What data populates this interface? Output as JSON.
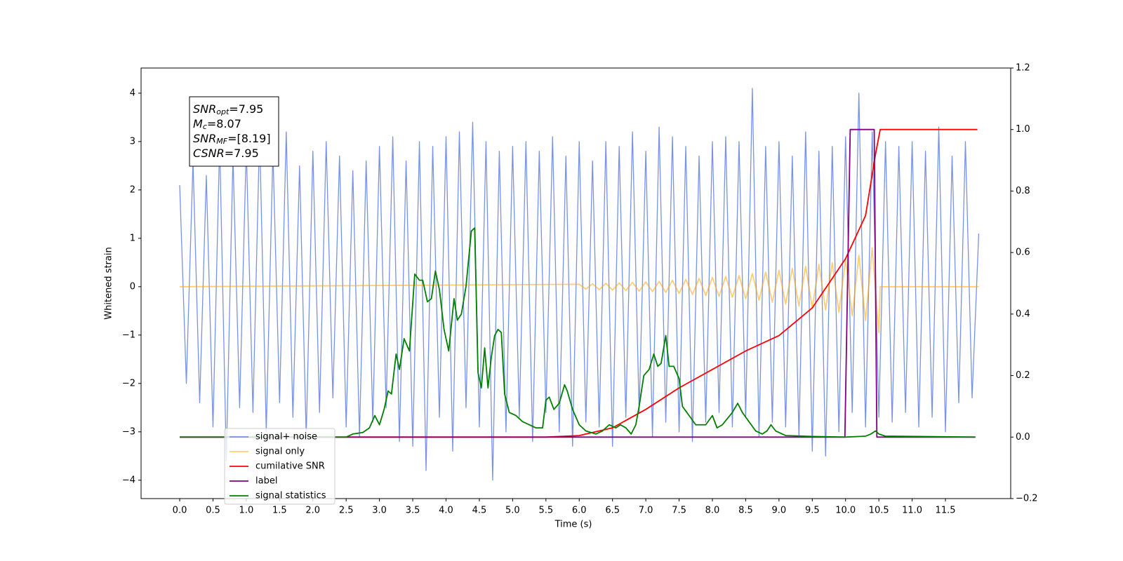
{
  "chart_data": {
    "type": "line",
    "xlabel": "Time (s)",
    "ylabel": "Whitened strain",
    "xlim": [
      -0.58,
      12.48
    ],
    "ylim": [
      -4.38,
      4.52
    ],
    "y2lim": [
      -0.2,
      1.2
    ],
    "xticks": [
      {
        "value": 0,
        "label": "0.0"
      },
      {
        "value": 0.5,
        "label": "0.5"
      },
      {
        "value": 1,
        "label": "1.0"
      },
      {
        "value": 1.5,
        "label": "1.5"
      },
      {
        "value": 2,
        "label": "2.0"
      },
      {
        "value": 2.5,
        "label": "2.5"
      },
      {
        "value": 3,
        "label": "3.0"
      },
      {
        "value": 3.5,
        "label": "3.5"
      },
      {
        "value": 4,
        "label": "4.0"
      },
      {
        "value": 4.5,
        "label": "4.5"
      },
      {
        "value": 5,
        "label": "5.0"
      },
      {
        "value": 5.5,
        "label": "5.5"
      },
      {
        "value": 6,
        "label": "6.0"
      },
      {
        "value": 6.5,
        "label": "6.5"
      },
      {
        "value": 7,
        "label": "7.0"
      },
      {
        "value": 7.5,
        "label": "7.5"
      },
      {
        "value": 8,
        "label": "8.0"
      },
      {
        "value": 8.5,
        "label": "8.5"
      },
      {
        "value": 9,
        "label": "9.0"
      },
      {
        "value": 9.5,
        "label": "9.5"
      },
      {
        "value": 10,
        "label": "10.0"
      },
      {
        "value": 10.5,
        "label": "10.5"
      },
      {
        "value": 11,
        "label": "11.0"
      },
      {
        "value": 11.5,
        "label": "11.5"
      }
    ],
    "yticks": [
      {
        "value": -4,
        "label": "−4"
      },
      {
        "value": -3,
        "label": "−3"
      },
      {
        "value": -2,
        "label": "−2"
      },
      {
        "value": -1,
        "label": "−1"
      },
      0,
      1,
      2,
      3,
      4
    ],
    "y2ticks": [
      {
        "value": -0.2,
        "label": "−0.2"
      },
      {
        "value": 0,
        "label": "0.0"
      },
      {
        "value": 0.2,
        "label": "0.2"
      },
      {
        "value": 0.4,
        "label": "0.4"
      },
      {
        "value": 0.6,
        "label": "0.6"
      },
      {
        "value": 0.8,
        "label": "0.8"
      },
      {
        "value": 1,
        "label": "1.0"
      },
      {
        "value": 1.2,
        "label": "1.2"
      }
    ],
    "annotation": [
      {
        "symbol": "SNR",
        "sub": "opt",
        "text": "=7.95"
      },
      {
        "symbol": "M",
        "sub": "c",
        "text": "=8.07"
      },
      {
        "symbol": "SNR",
        "sub": "MF",
        "text": "=[8.19]"
      },
      {
        "symbol": "CSNR",
        "text": "=7.95"
      }
    ],
    "series": [
      {
        "name": "signal+ noise",
        "color": "#7892e8",
        "x": [
          0,
          0.1,
          0.2,
          0.3,
          0.4,
          0.5,
          0.6,
          0.7,
          0.8,
          0.9,
          1,
          1.1,
          1.2,
          1.3,
          1.4,
          1.5,
          1.6,
          1.7,
          1.8,
          1.9,
          2,
          2.1,
          2.2,
          2.3,
          2.4,
          2.5,
          2.6,
          2.7,
          2.8,
          2.9,
          3,
          3.1,
          3.2,
          3.3,
          3.4,
          3.5,
          3.6,
          3.7,
          3.8,
          3.9,
          4,
          4.1,
          4.2,
          4.3,
          4.4,
          4.5,
          4.6,
          4.7,
          4.8,
          4.9,
          5,
          5.1,
          5.2,
          5.3,
          5.4,
          5.5,
          5.6,
          5.7,
          5.8,
          5.9,
          6,
          6.1,
          6.2,
          6.3,
          6.4,
          6.5,
          6.6,
          6.7,
          6.8,
          6.9,
          7,
          7.1,
          7.2,
          7.3,
          7.4,
          7.5,
          7.6,
          7.7,
          7.8,
          7.9,
          8,
          8.1,
          8.2,
          8.3,
          8.4,
          8.5,
          8.6,
          8.7,
          8.8,
          8.9,
          9,
          9.1,
          9.2,
          9.3,
          9.4,
          9.5,
          9.6,
          9.7,
          9.8,
          9.9,
          10,
          10.1,
          10.2,
          10.3,
          10.4,
          10.5,
          10.6,
          10.7,
          10.8,
          10.9,
          11,
          11.1,
          11.2,
          11.3,
          11.4,
          11.5,
          11.6,
          11.7,
          11.8,
          11.9,
          12
        ],
        "values": [
          2.1,
          -2,
          2.6,
          -2.4,
          2.3,
          -2.9,
          3,
          -3.6,
          2.7,
          -2.5,
          2.9,
          -2.6,
          3.2,
          -3,
          2.8,
          -2.4,
          3.2,
          -2.7,
          2.5,
          -3.1,
          2.8,
          -2.6,
          3,
          -2.3,
          2.7,
          -2.9,
          2.4,
          -3.1,
          2.6,
          -2.8,
          2.9,
          -2.5,
          3.1,
          -3.2,
          2.6,
          -3.3,
          3,
          -3.8,
          2.9,
          -2.7,
          3.1,
          -3.4,
          3.2,
          -2.5,
          3.4,
          -2.9,
          3,
          -4,
          2.8,
          -3,
          2.9,
          -2.7,
          3,
          -3.2,
          2.8,
          -2.6,
          3.1,
          -3,
          2.7,
          -3.3,
          3,
          -2.8,
          2.6,
          -2.9,
          3,
          -3.3,
          2.9,
          -2.7,
          3.2,
          -2.6,
          2.8,
          -3.1,
          3.3,
          -2.8,
          3.1,
          -3,
          2.9,
          -3.2,
          2.7,
          -2.8,
          3,
          -2.6,
          3.1,
          -2.9,
          3,
          -2.7,
          4.1,
          -3.1,
          2.9,
          -2.8,
          3,
          -2.9,
          2.7,
          -3.1,
          3.2,
          -3.4,
          2.8,
          -3.5,
          2.9,
          -3,
          3.1,
          -2.6,
          4,
          -2.9,
          3.2,
          -2.7,
          3,
          -2.8,
          2.9,
          -2.6,
          3,
          -2.9,
          2.8,
          -2.7,
          3.3,
          -3,
          2.7,
          -2.4,
          3,
          -2.3,
          1.1
        ]
      },
      {
        "name": "signal only",
        "color": "#ffa500",
        "x": [
          0,
          6,
          6.1,
          6.2,
          6.3,
          6.4,
          6.5,
          6.6,
          6.7,
          6.8,
          6.9,
          7,
          7.1,
          7.2,
          7.3,
          7.4,
          7.5,
          7.6,
          7.7,
          7.8,
          7.9,
          8,
          8.1,
          8.2,
          8.3,
          8.4,
          8.5,
          8.6,
          8.7,
          8.8,
          8.9,
          9,
          9.1,
          9.2,
          9.3,
          9.4,
          9.5,
          9.6,
          9.7,
          9.8,
          9.9,
          10,
          10.1,
          10.2,
          10.3,
          10.4,
          10.5,
          10.52,
          12
        ],
        "values": [
          0,
          0.05,
          -0.05,
          0.06,
          -0.06,
          0.07,
          -0.07,
          0.08,
          -0.08,
          0.09,
          -0.09,
          0.1,
          -0.1,
          0.11,
          -0.12,
          0.13,
          -0.14,
          0.15,
          -0.16,
          0.17,
          -0.18,
          0.19,
          -0.2,
          0.21,
          -0.22,
          0.23,
          -0.25,
          0.27,
          -0.28,
          0.3,
          -0.32,
          0.34,
          -0.36,
          0.38,
          -0.4,
          0.42,
          -0.44,
          0.46,
          -0.48,
          0.5,
          -0.53,
          0.56,
          -0.6,
          0.65,
          -0.7,
          0.8,
          -0.95,
          0,
          0
        ]
      },
      {
        "name": "cumilative SNR",
        "color": "#ff0000",
        "axis": "y2",
        "x": [
          0,
          5.5,
          6,
          6.5,
          7,
          7.5,
          8,
          8.5,
          9,
          9.5,
          10,
          10.3,
          10.45,
          10.52,
          11.98
        ],
        "values": [
          0,
          0,
          0.005,
          0.03,
          0.09,
          0.16,
          0.22,
          0.28,
          0.33,
          0.42,
          0.58,
          0.72,
          0.92,
          1,
          1
        ]
      },
      {
        "name": "label",
        "color": "#800080",
        "axis": "y2",
        "x": [
          0,
          9.99,
          10.07,
          10.43,
          10.47,
          11.95
        ],
        "values": [
          0,
          0,
          1,
          1,
          0,
          0
        ]
      },
      {
        "name": "signal statistics",
        "color": "#008000",
        "axis": "y2",
        "x": [
          0,
          2.5,
          2.6,
          2.75,
          2.85,
          2.93,
          3,
          3.07,
          3.13,
          3.18,
          3.25,
          3.3,
          3.37,
          3.45,
          3.53,
          3.6,
          3.65,
          3.72,
          3.78,
          3.84,
          3.9,
          3.97,
          4.04,
          4.12,
          4.17,
          4.23,
          4.3,
          4.38,
          4.43,
          4.48,
          4.53,
          4.58,
          4.63,
          4.68,
          4.73,
          4.78,
          4.83,
          4.88,
          4.95,
          5.05,
          5.15,
          5.25,
          5.35,
          5.45,
          5.5,
          5.55,
          5.62,
          5.7,
          5.78,
          5.82,
          5.9,
          6,
          6.1,
          6.25,
          6.35,
          6.45,
          6.55,
          6.62,
          6.7,
          6.78,
          6.85,
          6.9,
          6.97,
          7.05,
          7.12,
          7.18,
          7.23,
          7.3,
          7.35,
          7.42,
          7.5,
          7.55,
          7.65,
          7.75,
          7.8,
          7.9,
          8,
          8.07,
          8.15,
          8.3,
          8.38,
          8.45,
          8.55,
          8.65,
          8.75,
          8.82,
          8.88,
          8.95,
          9.1,
          9.5,
          10,
          10.3,
          10.38,
          10.45,
          10.5,
          10.6,
          11.95
        ],
        "values": [
          0,
          0,
          0.01,
          0.015,
          0.03,
          0.07,
          0.04,
          0.09,
          0.15,
          0.14,
          0.27,
          0.22,
          0.32,
          0.28,
          0.53,
          0.51,
          0.51,
          0.44,
          0.45,
          0.54,
          0.48,
          0.35,
          0.28,
          0.45,
          0.38,
          0.4,
          0.49,
          0.67,
          0.68,
          0.21,
          0.16,
          0.29,
          0.16,
          0.26,
          0.33,
          0.35,
          0.34,
          0.14,
          0.08,
          0.07,
          0.05,
          0.04,
          0.03,
          0.03,
          0.12,
          0.13,
          0.09,
          0.11,
          0.17,
          0.15,
          0.09,
          0.04,
          0.02,
          0.01,
          0.02,
          0.04,
          0.03,
          0.04,
          0.03,
          0.01,
          0.04,
          0.1,
          0.2,
          0.22,
          0.27,
          0.23,
          0.24,
          0.33,
          0.23,
          0.23,
          0.19,
          0.1,
          0.07,
          0.04,
          0.04,
          0.04,
          0.07,
          0.03,
          0.04,
          0.08,
          0.11,
          0.08,
          0.05,
          0.02,
          0.01,
          0.02,
          0.04,
          0.02,
          0.005,
          0.002,
          0,
          0.003,
          0.01,
          0.02,
          0.01,
          0.003,
          0
        ]
      }
    ]
  }
}
